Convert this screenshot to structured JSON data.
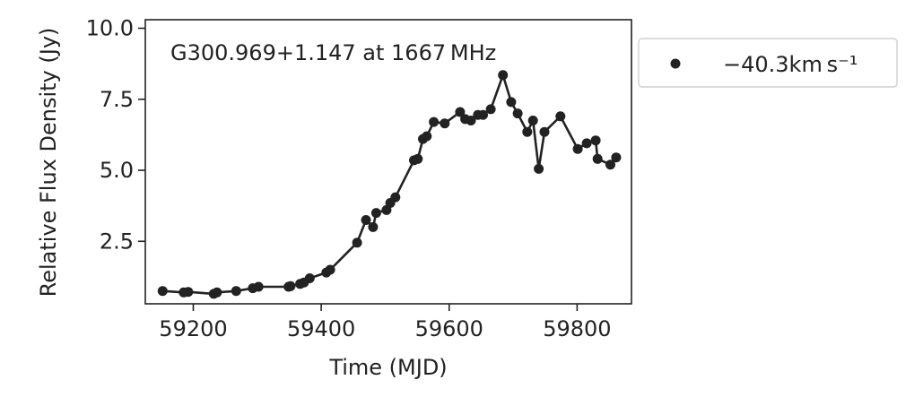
{
  "chart_data": {
    "type": "line",
    "annotation": "G300.969+1.147 at 1667 MHz",
    "xlabel": "Time (MJD)",
    "ylabel": "Relative Flux Density (Jy)",
    "xlim": [
      59125,
      59885
    ],
    "ylim": [
      0.3,
      10.3
    ],
    "xticks": [
      59200,
      59400,
      59600,
      59800
    ],
    "yticks": [
      2.5,
      5.0,
      7.5,
      10.0
    ],
    "xtick_labels": [
      "59200",
      "59400",
      "59600",
      "59800"
    ],
    "ytick_labels": [
      "2.5",
      "5.0",
      "7.5",
      "10.0"
    ],
    "grid": false,
    "legend_position": "outside-right",
    "series": [
      {
        "name": "−40.3km s⁻¹",
        "color": "#222222",
        "marker": "circle",
        "x": [
          59152,
          59185,
          59192,
          59232,
          59237,
          59267,
          59293,
          59302,
          59349,
          59352,
          59367,
          59373,
          59382,
          59408,
          59414,
          59456,
          59470,
          59481,
          59486,
          59502,
          59508,
          59516,
          59545,
          59551,
          59559,
          59565,
          59576,
          59593,
          59617,
          59625,
          59634,
          59645,
          59653,
          59665,
          59684,
          59697,
          59707,
          59722,
          59731,
          59740,
          59749,
          59774,
          59801,
          59815,
          59829,
          59832,
          59852,
          59861
        ],
        "y": [
          0.75,
          0.7,
          0.72,
          0.65,
          0.7,
          0.75,
          0.85,
          0.9,
          0.9,
          0.92,
          1.0,
          1.05,
          1.2,
          1.4,
          1.5,
          2.45,
          3.25,
          3.0,
          3.5,
          3.6,
          3.85,
          4.05,
          5.35,
          5.4,
          6.1,
          6.2,
          6.7,
          6.65,
          7.05,
          6.8,
          6.75,
          6.95,
          6.95,
          7.15,
          8.35,
          7.4,
          7.0,
          6.35,
          6.75,
          5.05,
          6.35,
          6.9,
          5.75,
          5.95,
          6.05,
          5.4,
          5.2,
          5.45
        ]
      }
    ]
  }
}
